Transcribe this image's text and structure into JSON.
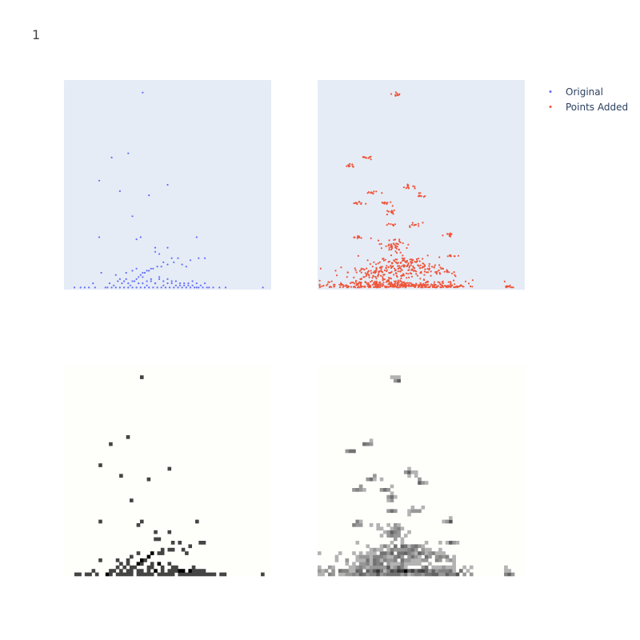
{
  "title": "1",
  "chart_data": [
    {
      "type": "scatter",
      "panel": "top-left",
      "background": "#e5ecf6",
      "marker_color": "#636efa",
      "grid": false,
      "xlim": [
        0,
        100
      ],
      "ylim": [
        0,
        100
      ],
      "series": [
        {
          "name": "Original",
          "x": [
            38,
            23,
            31,
            27,
            50,
            41,
            17,
            33,
            17,
            35,
            37,
            64,
            65,
            68,
            18,
            14,
            5,
            10,
            96,
            72,
            44,
            50,
            44,
            46,
            52,
            55,
            48,
            57,
            61,
            59,
            35,
            33,
            38,
            37,
            39,
            41,
            43,
            47,
            50,
            53,
            45,
            42,
            40,
            30,
            25,
            27,
            29,
            31,
            33,
            35,
            36,
            38,
            40,
            42,
            44,
            46,
            48,
            50,
            52,
            54,
            56,
            58,
            60,
            62,
            64,
            66,
            68,
            22,
            24,
            26,
            28,
            30,
            32,
            34,
            36,
            38,
            40,
            42,
            44,
            46,
            48,
            50,
            52,
            54,
            56,
            58,
            60,
            62,
            64,
            20,
            21,
            23,
            25,
            27,
            29,
            31,
            33,
            35,
            37,
            39,
            41,
            43,
            45,
            47,
            49,
            51,
            53,
            55,
            57,
            59,
            61,
            63,
            65,
            67,
            69,
            8,
            12,
            15,
            70,
            75,
            78
          ],
          "y": [
            94,
            63,
            65,
            47,
            50,
            45,
            52,
            35,
            25,
            24,
            25,
            25,
            15,
            15,
            8,
            3,
            1,
            1,
            1,
            1,
            20,
            20,
            18,
            17,
            15,
            15,
            13,
            12,
            14,
            11,
            10,
            9,
            8,
            7,
            8,
            9,
            10,
            11,
            12,
            13,
            11,
            10,
            9,
            8,
            7,
            5,
            4,
            3,
            4,
            5,
            6,
            3,
            4,
            5,
            3,
            6,
            4,
            5,
            3,
            4,
            2,
            3,
            2,
            4,
            3,
            2,
            3,
            3,
            2,
            4,
            3,
            5,
            2,
            4,
            3,
            6,
            2,
            4,
            3,
            5,
            2,
            3,
            4,
            2,
            3,
            2,
            3,
            2,
            1,
            1,
            1,
            1,
            1,
            1,
            1,
            1,
            1,
            1,
            1,
            1,
            1,
            1,
            1,
            1,
            1,
            1,
            1,
            1,
            1,
            1,
            1,
            1,
            1,
            1,
            1,
            1,
            1,
            1,
            1,
            1,
            1
          ]
        }
      ]
    },
    {
      "type": "scatter",
      "panel": "top-right",
      "background": "#e5ecf6",
      "marker_color": "#ef553b",
      "grid": false,
      "xlim": [
        0,
        100
      ],
      "ylim": [
        0,
        100
      ],
      "series": [
        {
          "name": "Points Added",
          "clusters": [
            {
              "x": 38,
              "y": 93,
              "n": 10,
              "sx": 1.2,
              "sy": 0.8
            },
            {
              "x": 24,
              "y": 63,
              "n": 10,
              "sx": 1.5,
              "sy": 0.6
            },
            {
              "x": 16,
              "y": 59,
              "n": 10,
              "sx": 1.2,
              "sy": 0.6
            },
            {
              "x": 44,
              "y": 49,
              "n": 12,
              "sx": 2,
              "sy": 0.6
            },
            {
              "x": 49,
              "y": 45,
              "n": 10,
              "sx": 1.5,
              "sy": 0.6
            },
            {
              "x": 27,
              "y": 46,
              "n": 10,
              "sx": 1.6,
              "sy": 0.6
            },
            {
              "x": 19,
              "y": 41,
              "n": 10,
              "sx": 1.6,
              "sy": 0.6
            },
            {
              "x": 33,
              "y": 41,
              "n": 10,
              "sx": 1.6,
              "sy": 0.6
            },
            {
              "x": 35,
              "y": 37,
              "n": 10,
              "sx": 1.6,
              "sy": 0.6
            },
            {
              "x": 47,
              "y": 31,
              "n": 10,
              "sx": 1.6,
              "sy": 0.6
            },
            {
              "x": 36,
              "y": 31,
              "n": 8,
              "sx": 1.5,
              "sy": 0.6
            },
            {
              "x": 20,
              "y": 25,
              "n": 12,
              "sx": 2,
              "sy": 0.6
            },
            {
              "x": 63,
              "y": 26,
              "n": 10,
              "sx": 1.5,
              "sy": 0.6
            },
            {
              "x": 64,
              "y": 16,
              "n": 10,
              "sx": 1.5,
              "sy": 0.6
            },
            {
              "x": 37,
              "y": 21,
              "n": 40,
              "sx": 3,
              "sy": 1.5
            },
            {
              "x": 40,
              "y": 13,
              "n": 80,
              "sx": 6,
              "sy": 2.5
            },
            {
              "x": 30,
              "y": 8,
              "n": 140,
              "sx": 10,
              "sy": 2.5
            },
            {
              "x": 34,
              "y": 3,
              "n": 280,
              "sx": 16,
              "sy": 1.5
            },
            {
              "x": 55,
              "y": 9,
              "n": 60,
              "sx": 7,
              "sy": 2
            },
            {
              "x": 60,
              "y": 3,
              "n": 60,
              "sx": 8,
              "sy": 0.8
            },
            {
              "x": 92,
              "y": 3,
              "n": 12,
              "sx": 1.2,
              "sy": 0.5
            }
          ]
        }
      ]
    },
    {
      "type": "heatmap",
      "panel": "bottom-left",
      "colorscale": [
        "#fefefb",
        "#000000"
      ],
      "source": "Original",
      "grid": false,
      "bins": [
        60,
        60
      ]
    },
    {
      "type": "heatmap",
      "panel": "bottom-right",
      "colorscale": [
        "#fefefb",
        "#000000"
      ],
      "source": "Points Added",
      "grid": false,
      "bins": [
        60,
        60
      ]
    }
  ],
  "legend": {
    "placement": "top-right",
    "items": [
      {
        "label": "Original",
        "color": "#636efa"
      },
      {
        "label": "Points Added",
        "color": "#ef553b"
      }
    ]
  }
}
